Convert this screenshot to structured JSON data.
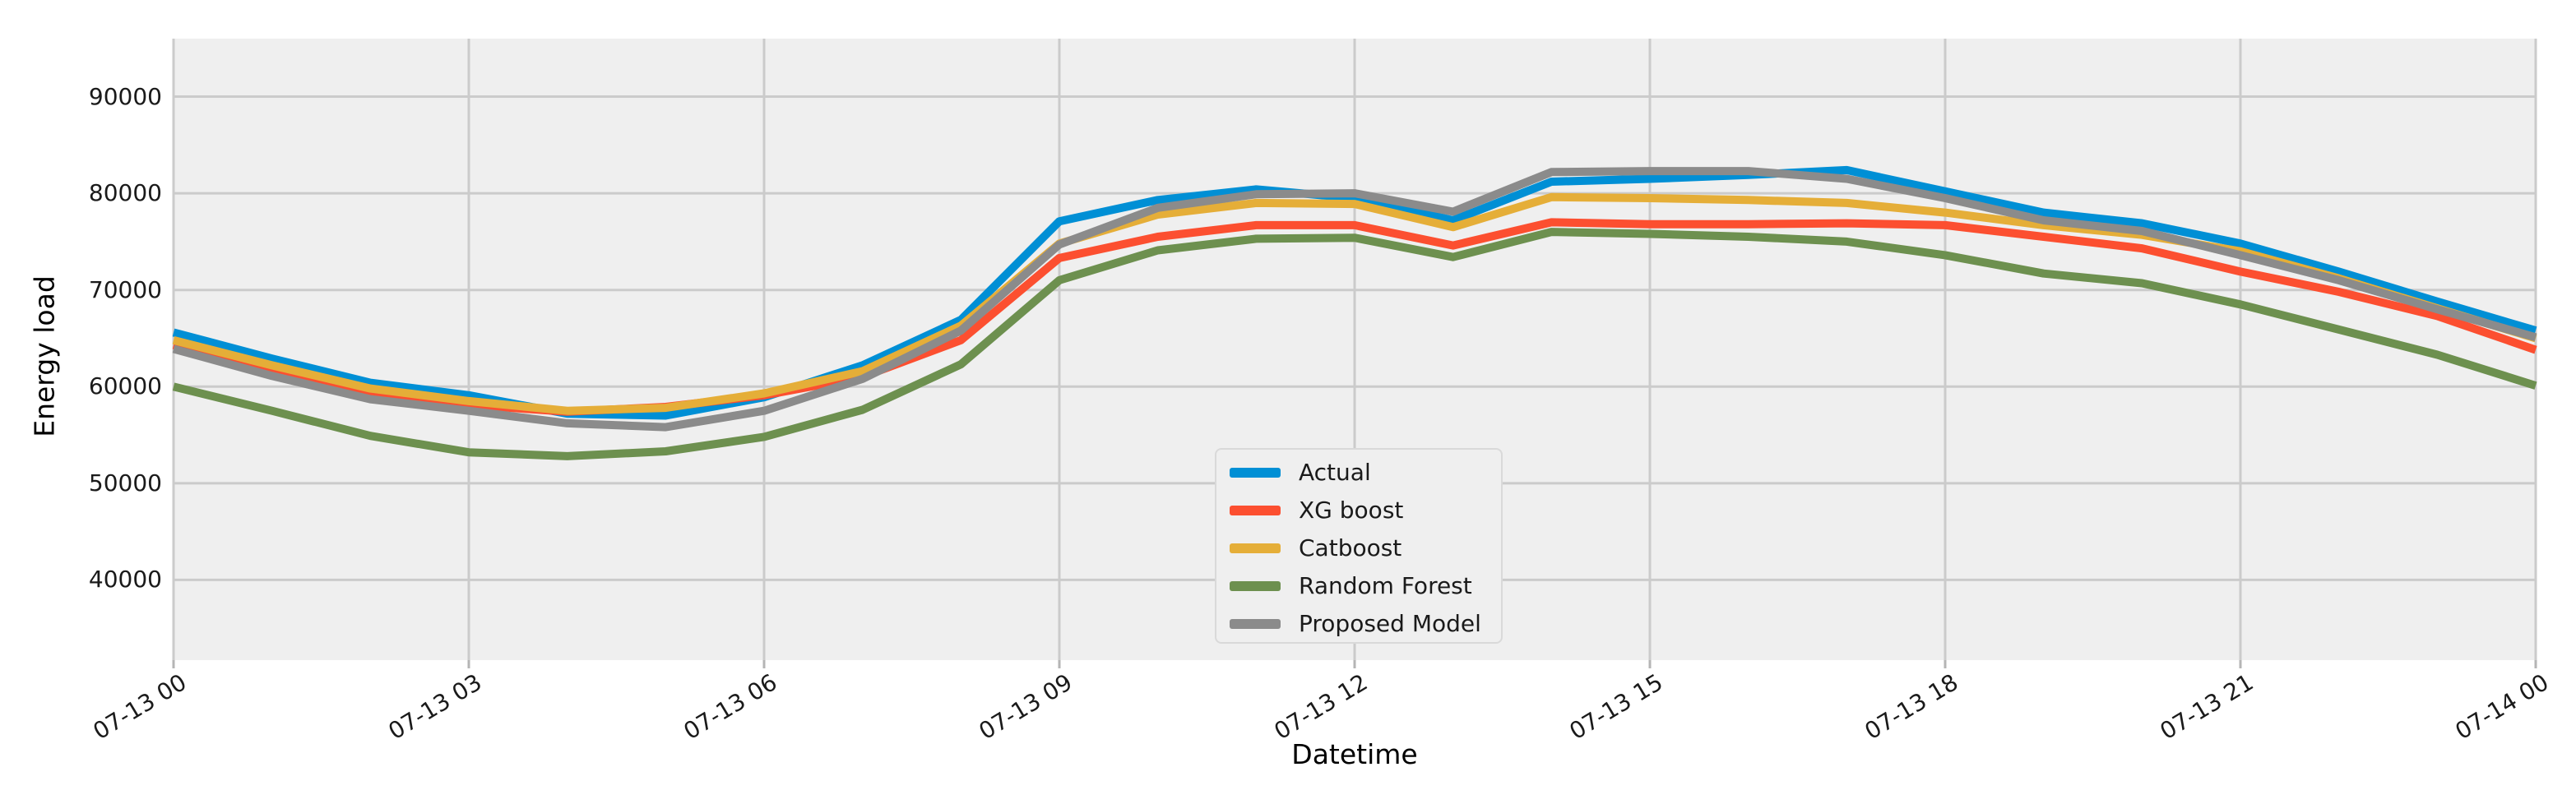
{
  "figure": {
    "background": "#ffffff",
    "axes_background": "#efefef",
    "grid_color": "#cbcbcb",
    "tick_color": "#b5b5b5",
    "text_color": "#1a1a1a"
  },
  "chart_data": {
    "type": "line",
    "title": "",
    "xlabel": "Datetime",
    "ylabel": "Energy load",
    "grid": true,
    "legend_position": "center-bottom",
    "xlim": [
      0,
      24
    ],
    "ylim": [
      31700,
      96000
    ],
    "x_hours": [
      0,
      1,
      2,
      3,
      4,
      5,
      6,
      7,
      8,
      9,
      10,
      11,
      12,
      13,
      14,
      15,
      16,
      17,
      18,
      19,
      20,
      21,
      22,
      23,
      24
    ],
    "x_tick_positions": [
      0,
      3,
      6,
      9,
      12,
      15,
      18,
      21,
      24
    ],
    "x_tick_labels": [
      "07-13 00",
      "07-13 03",
      "07-13 06",
      "07-13 09",
      "07-13 12",
      "07-13 15",
      "07-13 18",
      "07-13 21",
      "07-14 00"
    ],
    "y_ticks": [
      40000,
      50000,
      60000,
      70000,
      80000,
      90000
    ],
    "series": [
      {
        "name": "Actual",
        "color": "#008fd5",
        "values": [
          65600,
          62900,
          60400,
          59100,
          57200,
          57000,
          58900,
          62200,
          66900,
          77100,
          79300,
          80400,
          79500,
          77200,
          81200,
          81500,
          81900,
          82400,
          80200,
          78000,
          76900,
          74800,
          71900,
          68800,
          65800
        ]
      },
      {
        "name": "XG boost",
        "color": "#fc4f30",
        "values": [
          64300,
          61700,
          59400,
          58100,
          57400,
          57900,
          59100,
          61000,
          64800,
          73300,
          75500,
          76700,
          76700,
          74600,
          77000,
          76800,
          76800,
          76900,
          76700,
          75500,
          74300,
          71900,
          69800,
          67300,
          63800
        ]
      },
      {
        "name": "Catboost",
        "color": "#e5ae38",
        "values": [
          64800,
          62200,
          59800,
          58500,
          57500,
          57800,
          59300,
          61600,
          66300,
          74800,
          77800,
          79000,
          78900,
          76500,
          79600,
          79500,
          79300,
          79000,
          78000,
          76700,
          75700,
          74000,
          71200,
          68100,
          65000
        ]
      },
      {
        "name": "Random Forest",
        "color": "#6d904f",
        "values": [
          60000,
          57500,
          54900,
          53200,
          52800,
          53300,
          54800,
          57600,
          62300,
          71000,
          74100,
          75300,
          75400,
          73400,
          76000,
          75800,
          75500,
          75000,
          73600,
          71700,
          70700,
          68500,
          65900,
          63300,
          60100
        ]
      },
      {
        "name": "Proposed Model",
        "color": "#8b8b8b",
        "values": [
          63900,
          61100,
          58700,
          57500,
          56200,
          55800,
          57500,
          60800,
          65800,
          74700,
          78500,
          79900,
          80000,
          78100,
          82200,
          82300,
          82300,
          81500,
          79500,
          77200,
          76100,
          73600,
          71000,
          68000,
          65100
        ]
      }
    ]
  }
}
